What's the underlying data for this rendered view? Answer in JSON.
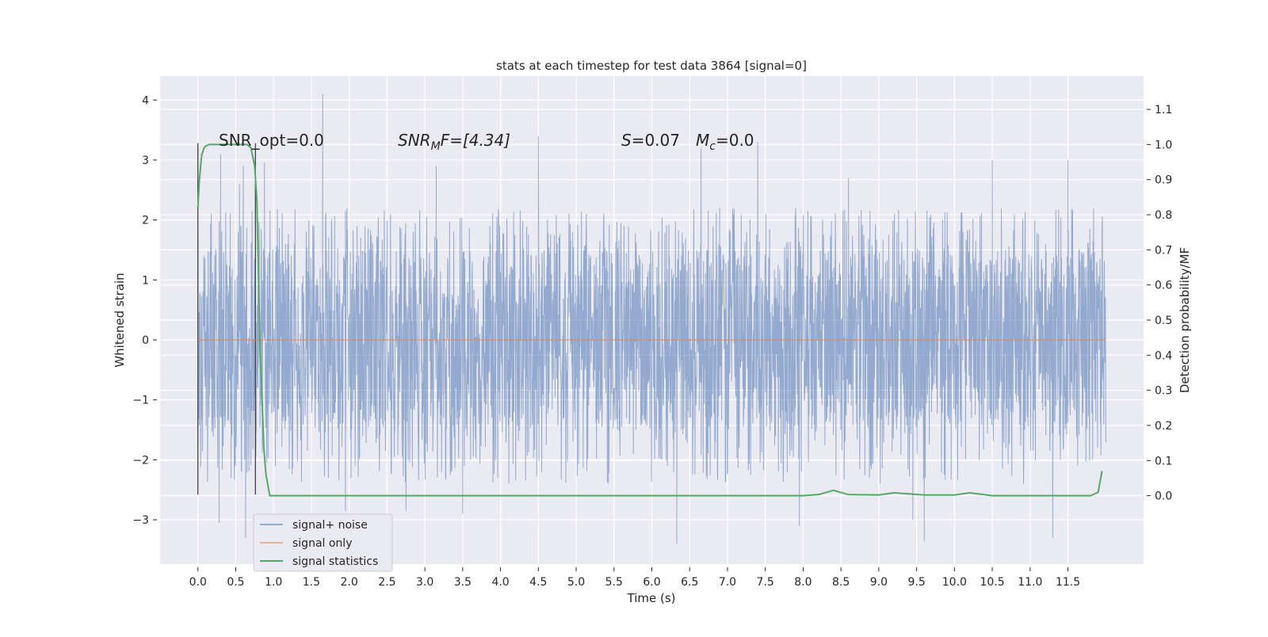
{
  "chart_data": {
    "type": "line",
    "title": "stats at each timestep for test data 3864 [signal=0]",
    "xlabel": "Time (s)",
    "ylabel": "Whitened strain",
    "y2label": "Detection probability/MF",
    "xlim": [
      -0.5,
      12.5
    ],
    "ylim": [
      -3.74,
      4.4
    ],
    "y2lim": [
      -0.195,
      1.195
    ],
    "x_ticks": [
      0.0,
      0.5,
      1.0,
      1.5,
      2.0,
      2.5,
      3.0,
      3.5,
      4.0,
      4.5,
      5.0,
      5.5,
      6.0,
      6.5,
      7.0,
      7.5,
      8.0,
      8.5,
      9.0,
      9.5,
      10.0,
      10.5,
      11.0,
      11.5
    ],
    "x_tick_labels": [
      "0.0",
      "0.5",
      "1.0",
      "1.5",
      "2.0",
      "2.5",
      "3.0",
      "3.5",
      "4.0",
      "4.5",
      "5.0",
      "5.5",
      "6.0",
      "6.5",
      "7.0",
      "7.5",
      "8.0",
      "8.5",
      "9.0",
      "9.5",
      "10.0",
      "10.5",
      "11.0",
      "11.5"
    ],
    "y_ticks": [
      -3,
      -2,
      -1,
      0,
      1,
      2,
      3,
      4
    ],
    "y_tick_labels": [
      "−3",
      "−2",
      "−1",
      "0",
      "1",
      "2",
      "3",
      "4"
    ],
    "y2_ticks": [
      0.0,
      0.1,
      0.2,
      0.3,
      0.4,
      0.5,
      0.6,
      0.7,
      0.8,
      0.9,
      1.0,
      1.1
    ],
    "y2_tick_labels": [
      "0.0",
      "0.1",
      "0.2",
      "0.3",
      "0.4",
      "0.5",
      "0.6",
      "0.7",
      "0.8",
      "0.9",
      "1.0",
      "1.1"
    ],
    "grid": true,
    "legend_position": "lower-left",
    "annotations": {
      "snr_opt": "SNR_opt=0.0",
      "snr_mf_sym": "SNR",
      "snr_mf_sub": "M",
      "snr_mf_rest": "F=[4.34]",
      "s_sym": "S",
      "s_val": "=0.07",
      "mc_sym": "M",
      "mc_sub": "c",
      "mc_val": "=0.0"
    },
    "window_markers": [
      0.0,
      0.76
    ],
    "series": [
      {
        "name": "signal+ noise",
        "color": "#4c72b0",
        "axis": "left",
        "duration": 12.0,
        "core_range": [
          -1.5,
          1.5
        ],
        "spike_hi": [
          [
            0.3,
            3.1
          ],
          [
            0.55,
            2.6
          ],
          [
            0.6,
            2.9
          ],
          [
            0.88,
            2.95
          ],
          [
            1.65,
            4.1
          ],
          [
            4.5,
            3.4
          ],
          [
            7.4,
            3.3
          ],
          [
            6.65,
            3.2
          ],
          [
            3.15,
            2.9
          ],
          [
            8.6,
            2.7
          ],
          [
            10.5,
            3.0
          ],
          [
            11.5,
            3.0
          ]
        ],
        "spike_lo": [
          [
            0.28,
            -3.05
          ],
          [
            0.63,
            -3.3
          ],
          [
            1.95,
            -2.85
          ],
          [
            2.75,
            -2.85
          ],
          [
            3.5,
            -2.9
          ],
          [
            6.33,
            -3.4
          ],
          [
            7.95,
            -3.1
          ],
          [
            9.6,
            -3.35
          ],
          [
            11.3,
            -3.3
          ],
          [
            9.45,
            -3.0
          ]
        ]
      },
      {
        "name": "signal only",
        "color": "#dd8452",
        "axis": "left",
        "x": [
          0.0,
          12.0
        ],
        "y": [
          0.0,
          0.0
        ]
      },
      {
        "name": "signal statistics",
        "color": "#55a868",
        "axis": "right",
        "x": [
          0.0,
          0.02,
          0.05,
          0.08,
          0.1,
          0.15,
          0.2,
          0.3,
          0.45,
          0.6,
          0.65,
          0.7,
          0.72,
          0.75,
          0.78,
          0.8,
          0.82,
          0.85,
          0.87,
          0.9,
          0.95,
          1.0,
          2.0,
          3.0,
          4.0,
          5.0,
          6.0,
          7.0,
          8.0,
          8.2,
          8.4,
          8.6,
          9.0,
          9.2,
          9.6,
          10.0,
          10.2,
          10.5,
          11.0,
          11.5,
          11.8,
          11.9,
          11.95
        ],
        "y": [
          0.82,
          0.9,
          0.97,
          0.99,
          0.995,
          1.0,
          1.0,
          1.0,
          1.0,
          1.0,
          1.0,
          0.99,
          0.97,
          0.94,
          0.84,
          0.63,
          0.44,
          0.26,
          0.14,
          0.06,
          0.0,
          0.0,
          0.0,
          0.0,
          0.0,
          0.0,
          0.0,
          0.0,
          0.0,
          0.003,
          0.015,
          0.003,
          0.002,
          0.008,
          0.002,
          0.002,
          0.008,
          0.0,
          0.0,
          0.0,
          0.0,
          0.01,
          0.07
        ]
      }
    ]
  }
}
